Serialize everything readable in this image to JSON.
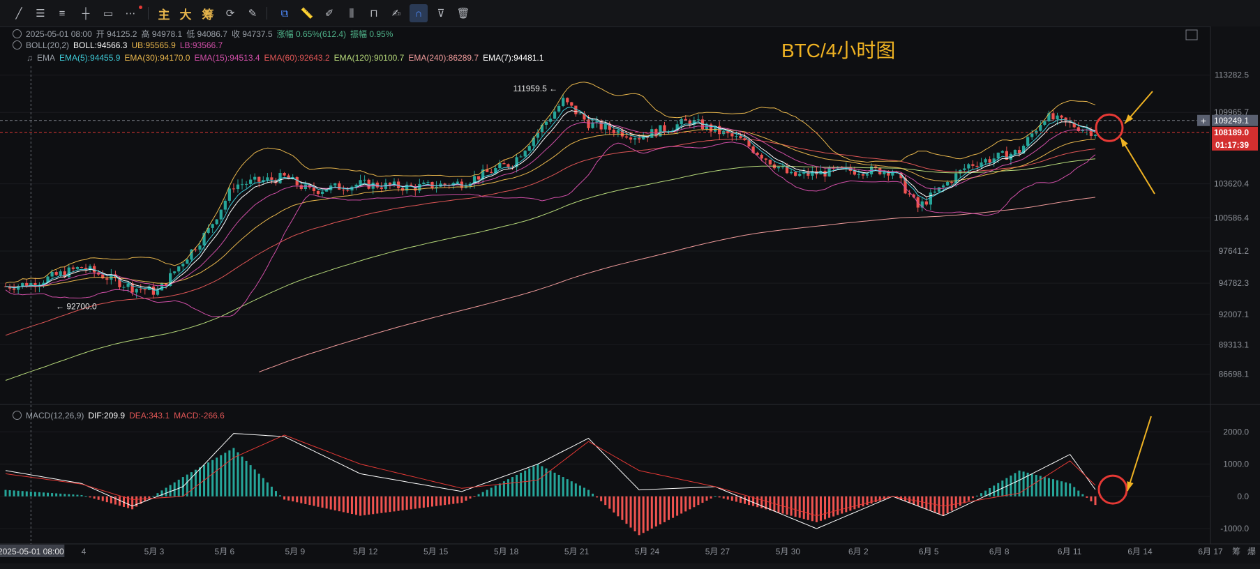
{
  "toolbar": {
    "tools": [
      "line-tool-icon",
      "hlines-tool-icon",
      "list-tool-icon",
      "hline-tool-icon",
      "rect-tool-icon",
      "more-tool-icon"
    ],
    "gold_buttons": [
      "主",
      "大",
      "筹"
    ],
    "right_tools": [
      "replay-icon",
      "link-icon",
      "ruler-icon",
      "brush-icon",
      "candles-icon",
      "lock-icon",
      "note-icon",
      "magnet-icon",
      "filter-icon",
      "trash-icon"
    ]
  },
  "header": {
    "ohlc": {
      "date": "2025-05-01 08:00",
      "open": "开 94125.2",
      "high": "高 94978.1",
      "low": "低 94086.7",
      "close": "收 94737.5",
      "change": "涨幅 0.65%(612.4)",
      "amp": "振幅 0.95%"
    },
    "boll": {
      "name": "BOLL(20,2)",
      "mid": "BOLL:94566.3",
      "ub": "UB:95565.9",
      "lb": "LB:93566.7"
    },
    "ema": {
      "name": "EMA",
      "items": [
        {
          "label": "EMA(5):94455.9",
          "color": "#3ec9d6"
        },
        {
          "label": "EMA(30):94170.0",
          "color": "#e8b64c"
        },
        {
          "label": "EMA(15):94513.4",
          "color": "#d14fa8"
        },
        {
          "label": "EMA(60):92643.2",
          "color": "#e05656"
        },
        {
          "label": "EMA(120):90100.7",
          "color": "#b6d97a"
        },
        {
          "label": "EMA(240):86289.7",
          "color": "#f09b9b"
        },
        {
          "label": "EMA(7):94481.1",
          "color": "#ffffff"
        }
      ]
    },
    "macd": {
      "name": "MACD(12,26,9)",
      "dif": "DIF:209.9",
      "dea": "DEA:343.1",
      "macd": "MACD:-266.6"
    }
  },
  "annotation": {
    "title": "BTC/4小时图",
    "high_label": "111959.5",
    "low_label": "92700.0"
  },
  "price_axis": {
    "ticks": [
      "113282.5",
      "109965.7",
      "103620.4",
      "100586.4",
      "97641.2",
      "94782.3",
      "92007.1",
      "89313.1",
      "86698.1"
    ],
    "tag_current": "109249.1",
    "tag_red": "108189.0",
    "countdown": "01:17:39"
  },
  "macd_axis": {
    "ticks": [
      "2000.0",
      "1000.0",
      "0.0",
      "-1000.0"
    ]
  },
  "time_axis": {
    "ticks": [
      "4",
      "5月 3",
      "5月 6",
      "5月 9",
      "5月 12",
      "5月 15",
      "5月 18",
      "5月 21",
      "5月 24",
      "5月 27",
      "5月 30",
      "6月 2",
      "6月 5",
      "6月 8",
      "6月 11",
      "6月 14",
      "6月 17"
    ],
    "crosshair_label": "2025-05-01 08:00",
    "corner": [
      "筹",
      "爆"
    ]
  },
  "chart_data": {
    "type": "candlestick",
    "title": "BTC/4小时图",
    "x_start": "2025-04-30",
    "x_end": "2025-06-12",
    "ylim": [
      84500,
      115000
    ],
    "price_series": [
      {
        "date": "2025-04-30",
        "close": 94500
      },
      {
        "date": "2025-05-01",
        "close": 94737
      },
      {
        "date": "2025-05-03",
        "close": 96200
      },
      {
        "date": "2025-05-05",
        "close": 94400
      },
      {
        "date": "2025-05-06",
        "close": 94000
      },
      {
        "date": "2025-05-08",
        "close": 99500
      },
      {
        "date": "2025-05-09",
        "close": 103500
      },
      {
        "date": "2025-05-11",
        "close": 104200
      },
      {
        "date": "2025-05-12",
        "close": 103000
      },
      {
        "date": "2025-05-14",
        "close": 103600
      },
      {
        "date": "2025-05-16",
        "close": 103300
      },
      {
        "date": "2025-05-18",
        "close": 103700
      },
      {
        "date": "2025-05-20",
        "close": 105500
      },
      {
        "date": "2025-05-22",
        "close": 111000
      },
      {
        "date": "2025-05-23",
        "close": 109000
      },
      {
        "date": "2025-05-25",
        "close": 107800
      },
      {
        "date": "2025-05-27",
        "close": 109200
      },
      {
        "date": "2025-05-29",
        "close": 107500
      },
      {
        "date": "2025-05-31",
        "close": 104300
      },
      {
        "date": "2025-06-02",
        "close": 104800
      },
      {
        "date": "2025-06-04",
        "close": 104800
      },
      {
        "date": "2025-06-05",
        "close": 101500
      },
      {
        "date": "2025-06-07",
        "close": 105300
      },
      {
        "date": "2025-06-09",
        "close": 106500
      },
      {
        "date": "2025-06-10",
        "close": 109600
      },
      {
        "date": "2025-06-12",
        "close": 108200
      }
    ],
    "macd_series": [
      {
        "date": "2025-04-30",
        "dif": 800,
        "dea": 700
      },
      {
        "date": "2025-05-03",
        "dif": 400,
        "dea": 380
      },
      {
        "date": "2025-05-05",
        "dif": -300,
        "dea": -100
      },
      {
        "date": "2025-05-07",
        "dif": 300,
        "dea": 0
      },
      {
        "date": "2025-05-09",
        "dif": 1950,
        "dea": 1200
      },
      {
        "date": "2025-05-11",
        "dif": 1850,
        "dea": 1900
      },
      {
        "date": "2025-05-14",
        "dif": 700,
        "dea": 1000
      },
      {
        "date": "2025-05-18",
        "dif": 150,
        "dea": 250
      },
      {
        "date": "2025-05-21",
        "dif": 1000,
        "dea": 500
      },
      {
        "date": "2025-05-23",
        "dif": 1800,
        "dea": 1700
      },
      {
        "date": "2025-05-25",
        "dif": 200,
        "dea": 800
      },
      {
        "date": "2025-05-28",
        "dif": 300,
        "dea": 300
      },
      {
        "date": "2025-06-01",
        "dif": -1000,
        "dea": -600
      },
      {
        "date": "2025-06-04",
        "dif": 0,
        "dea": 0
      },
      {
        "date": "2025-06-06",
        "dif": -600,
        "dea": -300
      },
      {
        "date": "2025-06-09",
        "dif": 500,
        "dea": 100
      },
      {
        "date": "2025-06-11",
        "dif": 1300,
        "dea": 1100
      },
      {
        "date": "2025-06-12",
        "dif": 210,
        "dea": 343
      }
    ],
    "macd_ylim": [
      -1300,
      2200
    ],
    "horizontal_lines": [
      109249.1,
      108189.0
    ]
  }
}
